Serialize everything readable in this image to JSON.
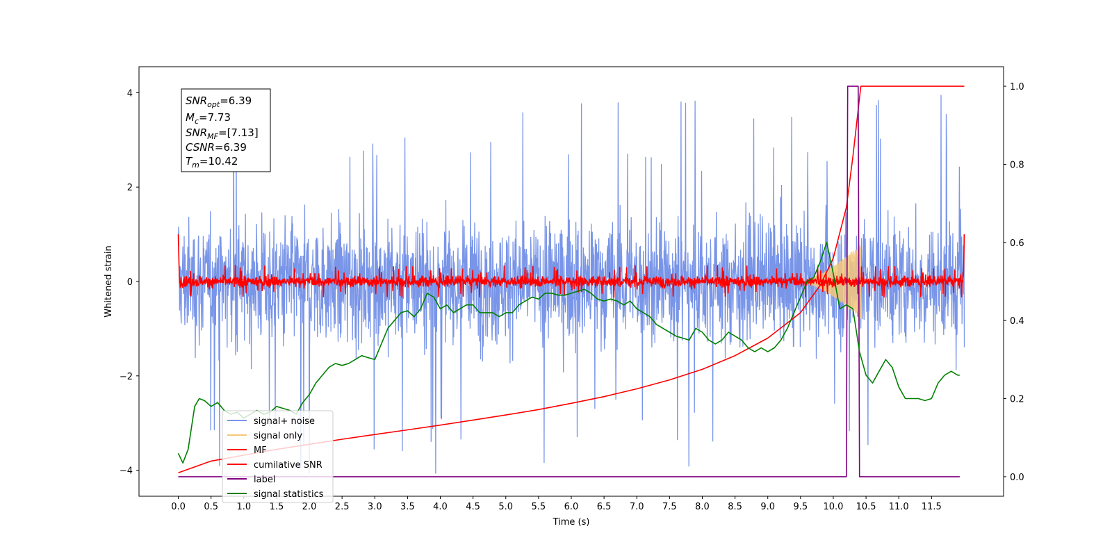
{
  "chart_data": {
    "type": "line",
    "xlabel": "Time (s)",
    "ylabel": "Whitened strain",
    "xlim": [
      -0.6,
      12.6
    ],
    "ylim": [
      -4.55,
      4.55
    ],
    "y2lim": [
      -0.05,
      1.05
    ],
    "x_ticks": [
      "0.0",
      "0.5",
      "1.0",
      "1.5",
      "2.0",
      "2.5",
      "3.0",
      "3.5",
      "4.0",
      "4.5",
      "5.0",
      "5.5",
      "6.0",
      "6.5",
      "7.0",
      "7.5",
      "8.0",
      "8.5",
      "9.0",
      "9.5",
      "10.0",
      "10.5",
      "11.0",
      "11.5"
    ],
    "y_ticks": [
      "4",
      "2",
      "0",
      "−2",
      "−4"
    ],
    "y2_ticks": [
      "1.0",
      "0.8",
      "0.6",
      "0.4",
      "0.2",
      "0.0"
    ],
    "legend_placement": "lower-left",
    "grid": false,
    "annotation": {
      "snr_opt": {
        "main": "SNR",
        "sub": "opt",
        "value": "=6.39"
      },
      "mc": {
        "main": "M",
        "sub": "c",
        "value": "=7.73"
      },
      "snr_mf": {
        "main": "SNR",
        "sub": "MF",
        "value": "=[7.13]"
      },
      "csnr": {
        "main": "CSNR",
        "sub": "",
        "value": "=6.39"
      },
      "tm": {
        "main": "T",
        "sub": "m",
        "value": "=10.42"
      }
    },
    "series": [
      {
        "name": "signal+ noise",
        "color": "#7995e8",
        "axis": "left",
        "style": "noise",
        "x_range": [
          0.0,
          12.0
        ],
        "amplitude_range": [
          -4.1,
          4.1
        ],
        "typical_range": [
          -2.3,
          2.3
        ]
      },
      {
        "name": "signal only",
        "color": "#f5c77a",
        "axis": "left",
        "style": "chirp",
        "x_range": [
          9.6,
          10.42
        ],
        "peak_amplitude": 0.75
      },
      {
        "name": "MF",
        "color": "#ff0000",
        "axis": "left",
        "style": "noise",
        "x_range": [
          0.0,
          12.0
        ],
        "typical_range": [
          -0.2,
          0.2
        ],
        "edge_value": 1.0
      },
      {
        "name": "cumilative SNR",
        "color": "#ff0000",
        "axis": "right",
        "x": [
          0.0,
          0.5,
          1.0,
          1.5,
          2.0,
          2.5,
          3.0,
          3.5,
          4.0,
          4.5,
          5.0,
          5.5,
          6.0,
          6.5,
          7.0,
          7.5,
          8.0,
          8.5,
          9.0,
          9.5,
          9.8,
          10.0,
          10.2,
          10.3,
          10.42,
          10.5,
          11.0,
          11.5,
          12.0
        ],
        "y": [
          0.01,
          0.04,
          0.055,
          0.07,
          0.083,
          0.096,
          0.108,
          0.12,
          0.132,
          0.145,
          0.158,
          0.172,
          0.188,
          0.205,
          0.225,
          0.248,
          0.275,
          0.31,
          0.355,
          0.42,
          0.49,
          0.56,
          0.69,
          0.82,
          1.0,
          1.0,
          1.0,
          1.0,
          1.0
        ]
      },
      {
        "name": "label",
        "color": "#800080",
        "axis": "right",
        "x": [
          0.0,
          10.2,
          10.22,
          10.38,
          10.4,
          11.93
        ],
        "y": [
          0.0,
          0.0,
          1.0,
          1.0,
          0.0,
          0.0
        ]
      },
      {
        "name": "signal statistics",
        "color": "#008000",
        "axis": "right",
        "x": [
          0.0,
          0.07,
          0.15,
          0.25,
          0.32,
          0.4,
          0.5,
          0.6,
          0.7,
          0.8,
          0.9,
          1.0,
          1.1,
          1.2,
          1.3,
          1.4,
          1.5,
          1.6,
          1.7,
          1.8,
          1.9,
          2.0,
          2.1,
          2.2,
          2.3,
          2.4,
          2.5,
          2.6,
          2.7,
          2.8,
          2.9,
          3.0,
          3.1,
          3.2,
          3.3,
          3.4,
          3.5,
          3.6,
          3.7,
          3.8,
          3.9,
          4.0,
          4.1,
          4.2,
          4.3,
          4.4,
          4.5,
          4.6,
          4.7,
          4.8,
          4.9,
          5.0,
          5.1,
          5.2,
          5.3,
          5.4,
          5.5,
          5.6,
          5.7,
          5.8,
          5.9,
          6.0,
          6.1,
          6.2,
          6.3,
          6.4,
          6.5,
          6.6,
          6.7,
          6.8,
          6.9,
          7.0,
          7.1,
          7.2,
          7.3,
          7.4,
          7.5,
          7.6,
          7.7,
          7.8,
          7.9,
          8.0,
          8.1,
          8.2,
          8.3,
          8.4,
          8.5,
          8.6,
          8.7,
          8.8,
          8.9,
          9.0,
          9.1,
          9.2,
          9.3,
          9.4,
          9.5,
          9.6,
          9.7,
          9.8,
          9.9,
          10.0,
          10.1,
          10.2,
          10.3,
          10.4,
          10.5,
          10.6,
          10.7,
          10.8,
          10.9,
          11.0,
          11.1,
          11.2,
          11.3,
          11.4,
          11.5,
          11.6,
          11.7,
          11.8,
          11.9,
          11.93
        ],
        "y": [
          0.06,
          0.035,
          0.07,
          0.18,
          0.2,
          0.195,
          0.18,
          0.19,
          0.17,
          0.16,
          0.165,
          0.15,
          0.16,
          0.17,
          0.16,
          0.165,
          0.18,
          0.175,
          0.17,
          0.16,
          0.19,
          0.21,
          0.24,
          0.26,
          0.28,
          0.29,
          0.285,
          0.29,
          0.3,
          0.31,
          0.305,
          0.3,
          0.34,
          0.38,
          0.4,
          0.42,
          0.425,
          0.41,
          0.43,
          0.47,
          0.46,
          0.43,
          0.44,
          0.42,
          0.43,
          0.44,
          0.44,
          0.42,
          0.42,
          0.42,
          0.41,
          0.42,
          0.42,
          0.44,
          0.45,
          0.46,
          0.455,
          0.47,
          0.47,
          0.465,
          0.465,
          0.47,
          0.475,
          0.48,
          0.47,
          0.455,
          0.45,
          0.455,
          0.45,
          0.44,
          0.45,
          0.43,
          0.42,
          0.41,
          0.39,
          0.38,
          0.37,
          0.36,
          0.355,
          0.35,
          0.38,
          0.37,
          0.35,
          0.34,
          0.35,
          0.37,
          0.36,
          0.35,
          0.33,
          0.32,
          0.33,
          0.32,
          0.33,
          0.35,
          0.38,
          0.42,
          0.46,
          0.5,
          0.51,
          0.55,
          0.6,
          0.52,
          0.43,
          0.44,
          0.43,
          0.32,
          0.26,
          0.24,
          0.27,
          0.3,
          0.28,
          0.23,
          0.2,
          0.2,
          0.2,
          0.195,
          0.2,
          0.24,
          0.26,
          0.27,
          0.26,
          0.26
        ]
      }
    ]
  }
}
